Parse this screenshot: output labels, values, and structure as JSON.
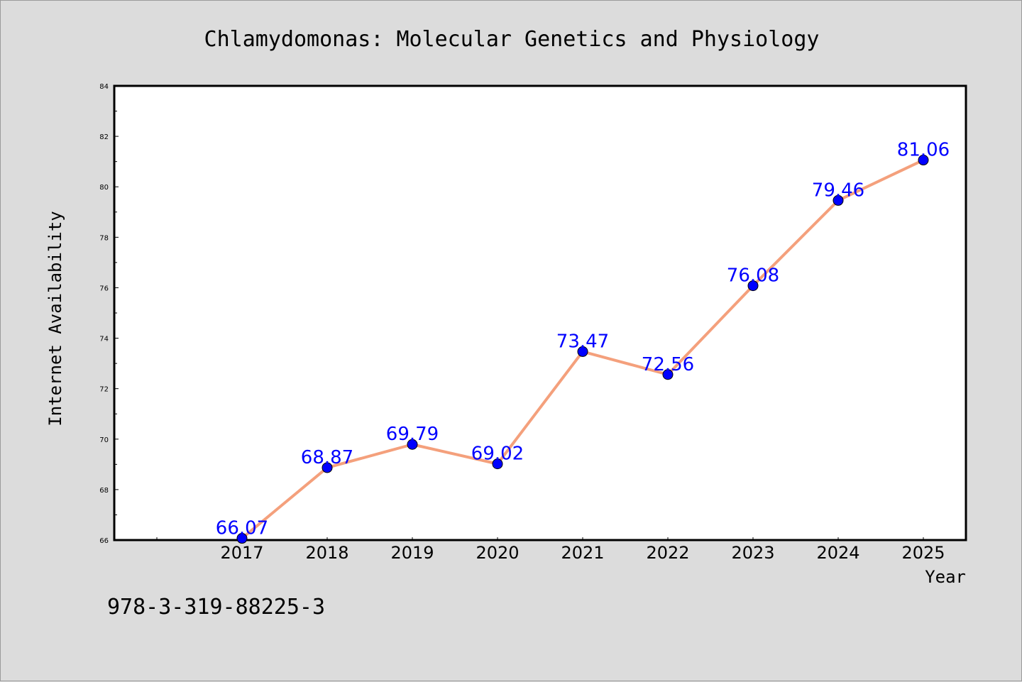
{
  "chart_data": {
    "type": "line",
    "title": "Chlamydomonas: Molecular Genetics and Physiology",
    "xlabel": "Year",
    "ylabel": "Internet Availability",
    "categories": [
      "2017",
      "2018",
      "2019",
      "2020",
      "2021",
      "2022",
      "2023",
      "2024",
      "2025"
    ],
    "values": [
      66.07,
      68.87,
      69.79,
      69.02,
      73.47,
      72.56,
      76.08,
      79.46,
      81.06
    ],
    "data_labels": [
      "66.07",
      "68.87",
      "69.79",
      "69.02",
      "73.47",
      "72.56",
      "76.08",
      "79.46",
      "81.06"
    ],
    "ylim": [
      66,
      84
    ],
    "yticks": [
      "66",
      "68",
      "70",
      "72",
      "74",
      "76",
      "78",
      "80",
      "82",
      "84"
    ],
    "grid": false,
    "legend": "none",
    "line_color": "#f4a07c",
    "marker_color": "#0000ff",
    "label_color": "#0000ff"
  },
  "footer_text": "978-3-319-88225-3"
}
